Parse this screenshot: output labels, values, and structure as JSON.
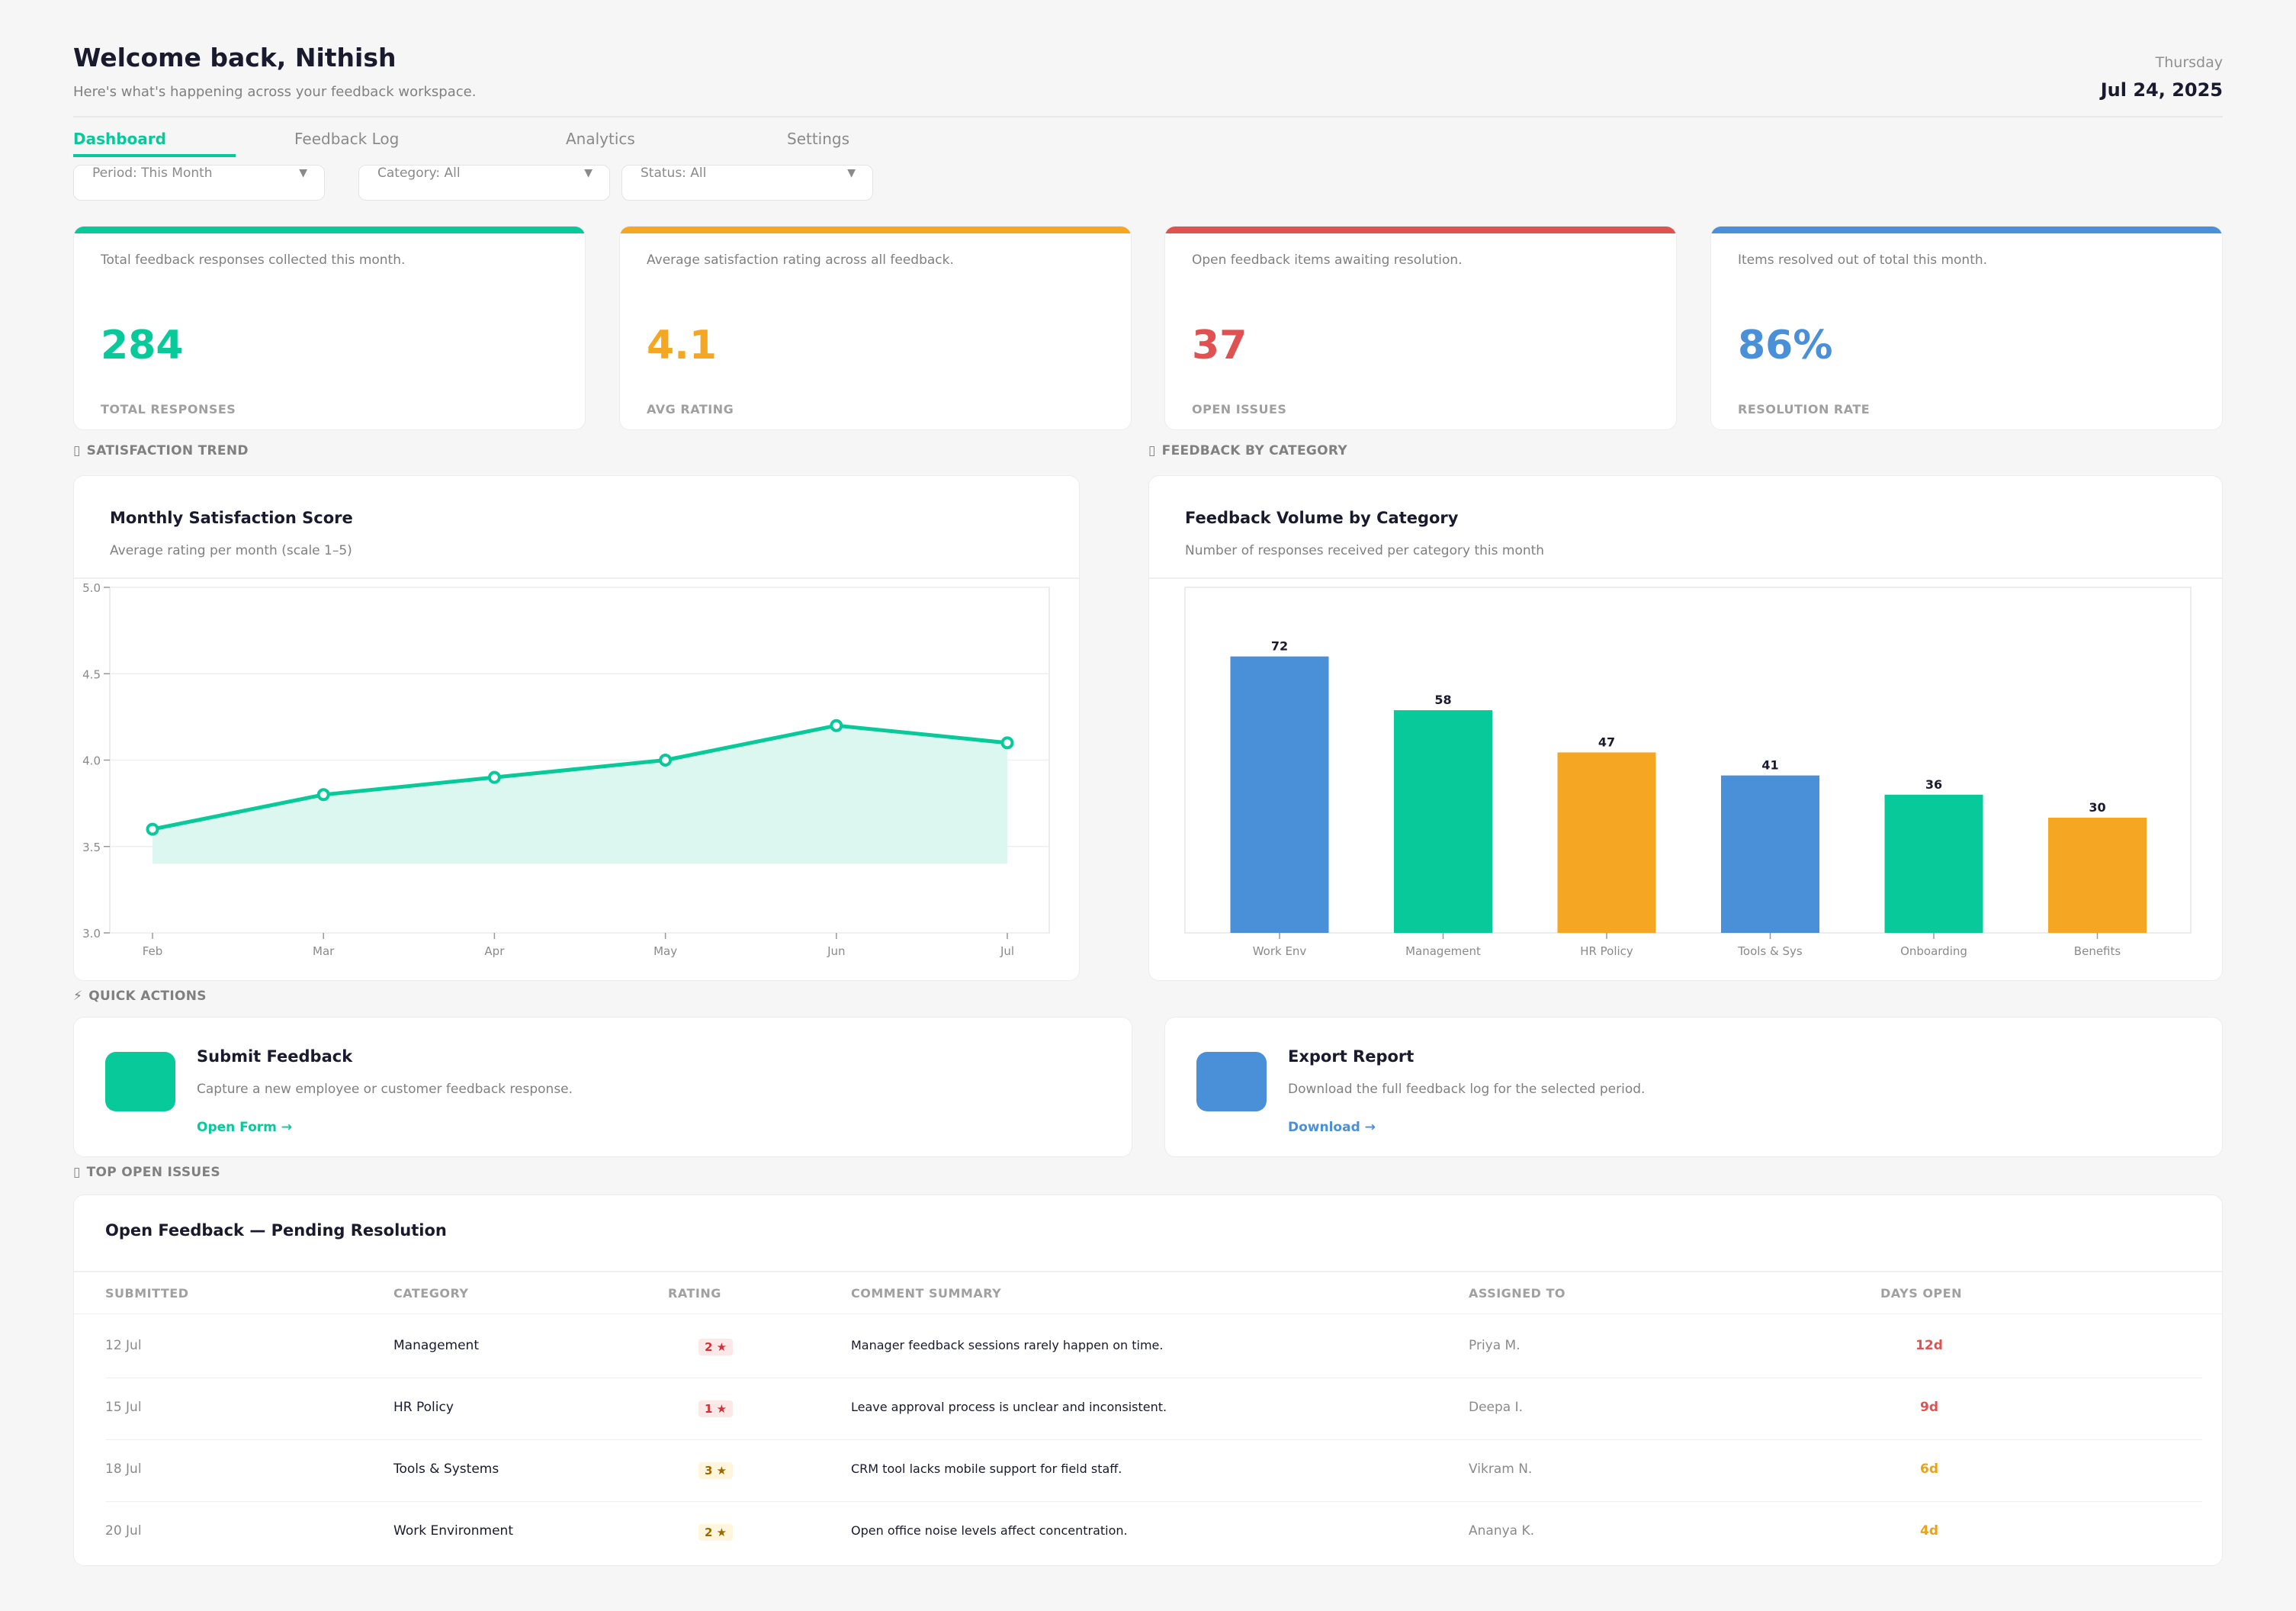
{
  "header": {
    "title": "Welcome back, Nithish",
    "subtitle": "Here's what's happening across your feedback workspace.",
    "day": "Thursday",
    "date": "Jul 24, 2025"
  },
  "tabs": [
    {
      "label": "Dashboard",
      "active": true
    },
    {
      "label": "Feedback Log",
      "active": false
    },
    {
      "label": "Analytics",
      "active": false
    },
    {
      "label": "Settings",
      "active": false
    }
  ],
  "filters": [
    {
      "label": "Period: This Month"
    },
    {
      "label": "Category: All"
    },
    {
      "label": "Status: All"
    }
  ],
  "kpis": [
    {
      "desc": "Total feedback responses collected this month.",
      "value": "284",
      "caption": "TOTAL RESPONSES",
      "color": "#08c99a"
    },
    {
      "desc": "Average satisfaction rating across all feedback.",
      "value": "4.1",
      "caption": "AVG RATING",
      "color": "#f5a623"
    },
    {
      "desc": "Open feedback items awaiting resolution.",
      "value": "37",
      "caption": "OPEN ISSUES",
      "color": "#e05252"
    },
    {
      "desc": "Items resolved out of total this month.",
      "value": "86%",
      "caption": "RESOLUTION RATE",
      "color": "#4a90d9"
    }
  ],
  "sections": {
    "trend": "SATISFACTION TREND",
    "category": "FEEDBACK BY CATEGORY",
    "quick": "QUICK ACTIONS",
    "issues": "TOP OPEN ISSUES"
  },
  "chart_data": [
    {
      "type": "area",
      "title": "Monthly Satisfaction Score",
      "subtitle": "Average rating per month (scale 1–5)",
      "categories": [
        "Feb",
        "Mar",
        "Apr",
        "May",
        "Jun",
        "Jul"
      ],
      "values": [
        3.6,
        3.8,
        3.9,
        4.0,
        4.2,
        4.1
      ],
      "ylim": [
        3.0,
        5.0
      ],
      "yticks": [
        "3.0",
        "3.5",
        "4.0",
        "4.5",
        "5.0"
      ],
      "fill_base": 3.4,
      "grid": true,
      "color": "#08c99a"
    },
    {
      "type": "bar",
      "title": "Feedback Volume by Category",
      "subtitle": "Number of responses received per category this month",
      "categories": [
        "Work Env",
        "Management",
        "HR Policy",
        "Tools & Sys",
        "Onboarding",
        "Benefits"
      ],
      "values": [
        72,
        58,
        47,
        41,
        36,
        30
      ],
      "value_labels": [
        "72",
        "58",
        "47",
        "41",
        "36",
        "30"
      ],
      "colors": [
        "#4a90d9",
        "#08c99a",
        "#f5a623",
        "#4a90d9",
        "#08c99a",
        "#f5a623"
      ],
      "ylim": [
        0,
        90
      ]
    }
  ],
  "quick_actions": [
    {
      "title": "Submit Feedback",
      "desc": "Capture a new employee or customer feedback response.",
      "link": "Open Form →",
      "color": "#08c99a"
    },
    {
      "title": "Export Report",
      "desc": "Download the full feedback log for the selected period.",
      "link": "Download →",
      "color": "#4a90d9"
    }
  ],
  "issues": {
    "title": "Open Feedback — Pending Resolution",
    "columns": [
      "SUBMITTED",
      "CATEGORY",
      "RATING",
      "COMMENT SUMMARY",
      "ASSIGNED TO",
      "DAYS OPEN"
    ],
    "rows": [
      {
        "submitted": "12 Jul",
        "category": "Management",
        "rating": "2 ★",
        "comment": "Manager feedback sessions rarely happen on time.",
        "assigned": "Priya M.",
        "days": "12d",
        "rating_color": "#d0343a",
        "rating_bg": "#fde8e8",
        "days_color": "#e05252"
      },
      {
        "submitted": "15 Jul",
        "category": "HR Policy",
        "rating": "1 ★",
        "comment": "Leave approval process is unclear and inconsistent.",
        "assigned": "Deepa I.",
        "days": "9d",
        "rating_color": "#d0343a",
        "rating_bg": "#fde8e8",
        "days_color": "#e05252"
      },
      {
        "submitted": "18 Jul",
        "category": "Tools & Systems",
        "rating": "3 ★",
        "comment": "CRM tool lacks mobile support for field staff.",
        "assigned": "Vikram N.",
        "days": "6d",
        "rating_color": "#9a6a00",
        "rating_bg": "#fff6dd",
        "days_color": "#e8a317"
      },
      {
        "submitted": "20 Jul",
        "category": "Work Environment",
        "rating": "2 ★",
        "comment": "Open office noise levels affect concentration.",
        "assigned": "Ananya K.",
        "days": "4d",
        "rating_color": "#9a6a00",
        "rating_bg": "#fff6dd",
        "days_color": "#e8a317"
      }
    ]
  }
}
